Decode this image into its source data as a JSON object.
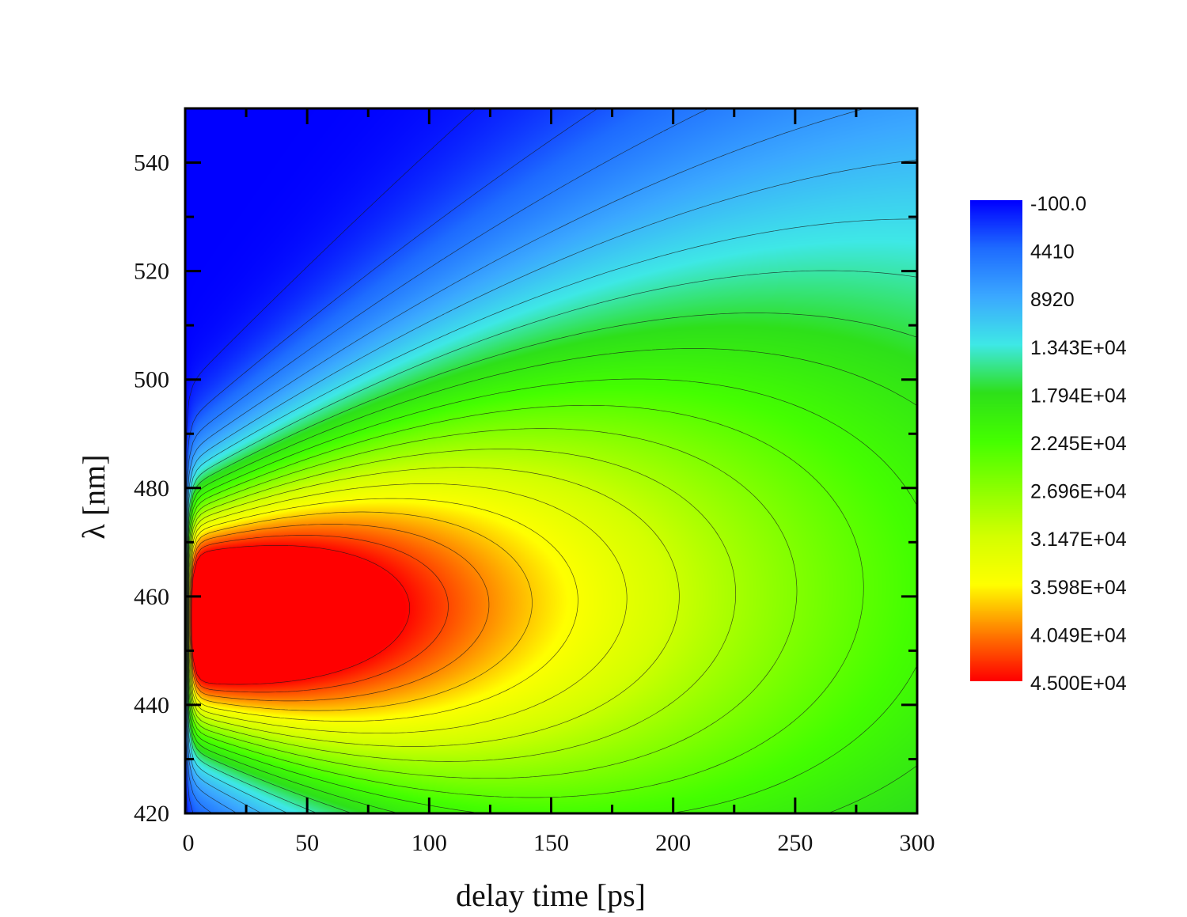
{
  "chart_data": {
    "type": "heatmap",
    "subtype": "contour-filled",
    "xlabel": "delay time [ps]",
    "ylabel": "λ [nm]",
    "xlim": [
      0,
      300
    ],
    "ylim": [
      420,
      550
    ],
    "x_ticks": [
      "0",
      "50",
      "100",
      "150",
      "200",
      "250",
      "300"
    ],
    "y_ticks": [
      "420",
      "440",
      "460",
      "480",
      "500",
      "520",
      "540"
    ],
    "x_tick_values": [
      0,
      50,
      100,
      150,
      200,
      250,
      300
    ],
    "y_tick_values": [
      420,
      440,
      460,
      480,
      500,
      520,
      540
    ],
    "x_minor_step": 25,
    "y_minor_step": 10,
    "z_range": [
      -100,
      45000
    ],
    "peak": {
      "x": 8,
      "y": 456,
      "z": 45000
    },
    "contour_lines": "on",
    "colorbar": {
      "position": "right",
      "labels": [
        "-100.0",
        "4410",
        "8920",
        "1.343E+04",
        "1.794E+04",
        "2.245E+04",
        "2.696E+04",
        "3.147E+04",
        "3.598E+04",
        "4.049E+04",
        "4.500E+04"
      ],
      "values": [
        -100,
        4410,
        8920,
        13430,
        17940,
        22450,
        26960,
        31470,
        35980,
        40490,
        45000
      ],
      "colors": [
        "#0000ff",
        "#1e6cff",
        "#3ba8ff",
        "#3ee8e6",
        "#2ee01a",
        "#44ff00",
        "#8cff00",
        "#d4ff00",
        "#ffff00",
        "#ff7d00",
        "#ff0000"
      ]
    }
  }
}
